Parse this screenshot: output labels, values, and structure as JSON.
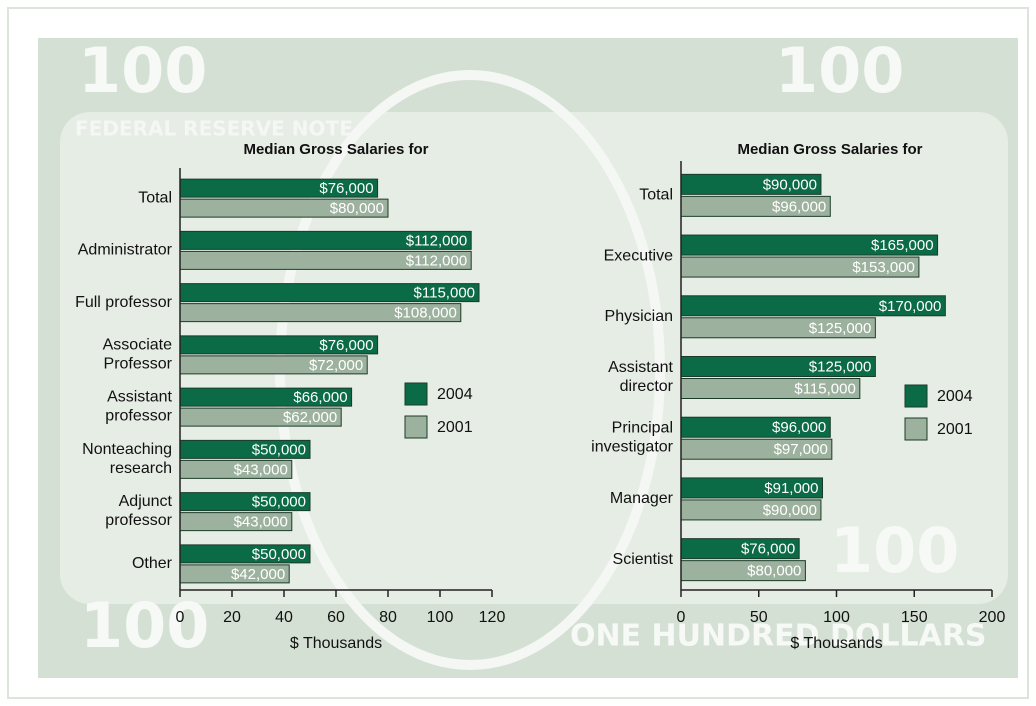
{
  "background": {
    "texts": [
      "100",
      "100",
      "100",
      "100",
      "FEDERAL RESERVE NOTE",
      "ONE HUNDRED DOLLARS"
    ]
  },
  "chart_data": [
    {
      "type": "bar",
      "orientation": "horizontal",
      "title": "Median Gross Salaries for",
      "xlabel": "$ Thousands",
      "categories": [
        "Total",
        "Administrator",
        "Full professor",
        "Associate\nProfessor",
        "Assistant\nprofessor",
        "Nonteaching\nresearch",
        "Adjunct\nprofessor",
        "Other"
      ],
      "series": [
        {
          "name": "2004",
          "color": "#0b6b47",
          "values": [
            76,
            112,
            115,
            76,
            66,
            50,
            50,
            50
          ],
          "value_labels": [
            "$76,000",
            "$112,000",
            "$115,000",
            "$76,000",
            "$66,000",
            "$50,000",
            "$50,000",
            "$50,000"
          ]
        },
        {
          "name": "2001",
          "color": "#9db29e",
          "values": [
            80,
            112,
            108,
            72,
            62,
            43,
            43,
            42
          ],
          "value_labels": [
            "$80,000",
            "$112,000",
            "$108,000",
            "$72,000",
            "$62,000",
            "$43,000",
            "$43,000",
            "$42,000"
          ]
        }
      ],
      "xlim": [
        0,
        120
      ],
      "xticks": [
        0,
        20,
        40,
        60,
        80,
        100,
        120
      ],
      "legend": "right"
    },
    {
      "type": "bar",
      "orientation": "horizontal",
      "title": "Median Gross Salaries for",
      "xlabel": "$ Thousands",
      "categories": [
        "Total",
        "Executive",
        "Physician",
        "Assistant\ndirector",
        "Principal\ninvestigator",
        "Manager",
        "Scientist"
      ],
      "series": [
        {
          "name": "2004",
          "color": "#0b6b47",
          "values": [
            90,
            165,
            170,
            125,
            96,
            91,
            76
          ],
          "value_labels": [
            "$90,000",
            "$165,000",
            "$170,000",
            "$125,000",
            "$96,000",
            "$91,000",
            "$76,000"
          ]
        },
        {
          "name": "2001",
          "color": "#9db29e",
          "values": [
            96,
            153,
            125,
            115,
            97,
            90,
            80
          ],
          "value_labels": [
            "$96,000",
            "$153,000",
            "$125,000",
            "$115,000",
            "$97,000",
            "$90,000",
            "$80,000"
          ]
        }
      ],
      "xlim": [
        0,
        200
      ],
      "xticks": [
        0,
        50,
        100,
        150,
        200
      ],
      "legend": "right"
    }
  ]
}
